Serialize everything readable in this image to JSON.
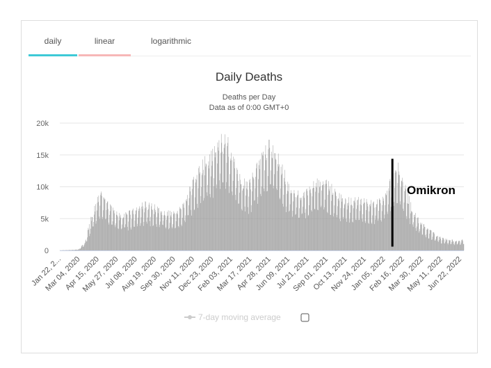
{
  "tabs": [
    {
      "label": "daily",
      "active": true,
      "underline": "#3ec9d6"
    },
    {
      "label": "linear",
      "active": false,
      "underline": "#f7b7b7"
    },
    {
      "label": "logarithmic",
      "active": false,
      "underline": ""
    }
  ],
  "chart_data": {
    "type": "bar",
    "title": "Daily Deaths",
    "subtitle_lines": [
      "Deaths per Day",
      "Data as of 0:00 GMT+0"
    ],
    "ylim": [
      0,
      20000
    ],
    "y_ticks": [
      0,
      5000,
      10000,
      15000,
      20000
    ],
    "y_tick_labels": [
      "0",
      "5k",
      "10k",
      "15k",
      "20k"
    ],
    "x_tick_labels": [
      "Jan 22, 2...",
      "Mar 04, 2020",
      "Apr 15, 2020",
      "May 27, 2020",
      "Jul 08, 2020",
      "Aug 19, 2020",
      "Sep 30, 2020",
      "Nov 11, 2020",
      "Dec 23, 2020",
      "Feb 03, 2021",
      "Mar 17, 2021",
      "Apr 28, 2021",
      "Jun 09, 2021",
      "Jul 21, 2021",
      "Sep 01, 2021",
      "Oct 13, 2021",
      "Nov 24, 2021",
      "Jan 05, 2022",
      "Feb 16, 2022",
      "Mar 30, 2022",
      "May 11, 2022",
      "Jun 22, 2022"
    ],
    "series_points": [
      {
        "date": "Jan 22, 2020",
        "value": 20
      },
      {
        "date": "Feb 20, 2020",
        "value": 80
      },
      {
        "date": "Mar 04, 2020",
        "value": 150
      },
      {
        "date": "Mar 18, 2020",
        "value": 1200
      },
      {
        "date": "Apr 01, 2020",
        "value": 4800
      },
      {
        "date": "Apr 15, 2020",
        "value": 7200
      },
      {
        "date": "Apr 22, 2020",
        "value": 8200
      },
      {
        "date": "May 06, 2020",
        "value": 6800
      },
      {
        "date": "May 27, 2020",
        "value": 5300
      },
      {
        "date": "Jun 10, 2020",
        "value": 5000
      },
      {
        "date": "Jun 24, 2020",
        "value": 5400
      },
      {
        "date": "Jul 08, 2020",
        "value": 5900
      },
      {
        "date": "Jul 29, 2020",
        "value": 6700
      },
      {
        "date": "Aug 19, 2020",
        "value": 6200
      },
      {
        "date": "Sep 09, 2020",
        "value": 5600
      },
      {
        "date": "Sep 30, 2020",
        "value": 5300
      },
      {
        "date": "Oct 21, 2020",
        "value": 6300
      },
      {
        "date": "Nov 11, 2020",
        "value": 9800
      },
      {
        "date": "Nov 25, 2020",
        "value": 11800
      },
      {
        "date": "Dec 09, 2020",
        "value": 12800
      },
      {
        "date": "Dec 23, 2020",
        "value": 13800
      },
      {
        "date": "Jan 06, 2021",
        "value": 15200
      },
      {
        "date": "Jan 20, 2021",
        "value": 16500
      },
      {
        "date": "Feb 03, 2021",
        "value": 14500
      },
      {
        "date": "Feb 17, 2021",
        "value": 11500
      },
      {
        "date": "Mar 03, 2021",
        "value": 10000
      },
      {
        "date": "Mar 17, 2021",
        "value": 9600
      },
      {
        "date": "Apr 07, 2021",
        "value": 12500
      },
      {
        "date": "Apr 28, 2021",
        "value": 15200
      },
      {
        "date": "May 12, 2021",
        "value": 14300
      },
      {
        "date": "May 26, 2021",
        "value": 12000
      },
      {
        "date": "Jun 09, 2021",
        "value": 9500
      },
      {
        "date": "Jun 30, 2021",
        "value": 8000
      },
      {
        "date": "Jul 21, 2021",
        "value": 8400
      },
      {
        "date": "Aug 11, 2021",
        "value": 10200
      },
      {
        "date": "Sep 01, 2021",
        "value": 10000
      },
      {
        "date": "Sep 22, 2021",
        "value": 8600
      },
      {
        "date": "Oct 13, 2021",
        "value": 7100
      },
      {
        "date": "Nov 03, 2021",
        "value": 7300
      },
      {
        "date": "Nov 24, 2021",
        "value": 7200
      },
      {
        "date": "Dec 15, 2021",
        "value": 6900
      },
      {
        "date": "Jan 05, 2022",
        "value": 7200
      },
      {
        "date": "Jan 26, 2022",
        "value": 10800
      },
      {
        "date": "Feb 09, 2022",
        "value": 11800
      },
      {
        "date": "Feb 16, 2022",
        "value": 10500
      },
      {
        "date": "Mar 02, 2022",
        "value": 7600
      },
      {
        "date": "Mar 16, 2022",
        "value": 5200
      },
      {
        "date": "Mar 30, 2022",
        "value": 4000
      },
      {
        "date": "Apr 20, 2022",
        "value": 2800
      },
      {
        "date": "May 11, 2022",
        "value": 1900
      },
      {
        "date": "Jun 01, 2022",
        "value": 1500
      },
      {
        "date": "Jun 22, 2022",
        "value": 1400
      },
      {
        "date": "Jul 03, 2022",
        "value": 1500
      }
    ],
    "annotation": {
      "label": "Omikron",
      "date": "Jan 26, 2022",
      "y_from": 600,
      "y_to": 14400
    },
    "legend": {
      "label": "7-day moving average",
      "position": "bottom-center"
    },
    "bar_color": "#999999",
    "grid": true
  }
}
